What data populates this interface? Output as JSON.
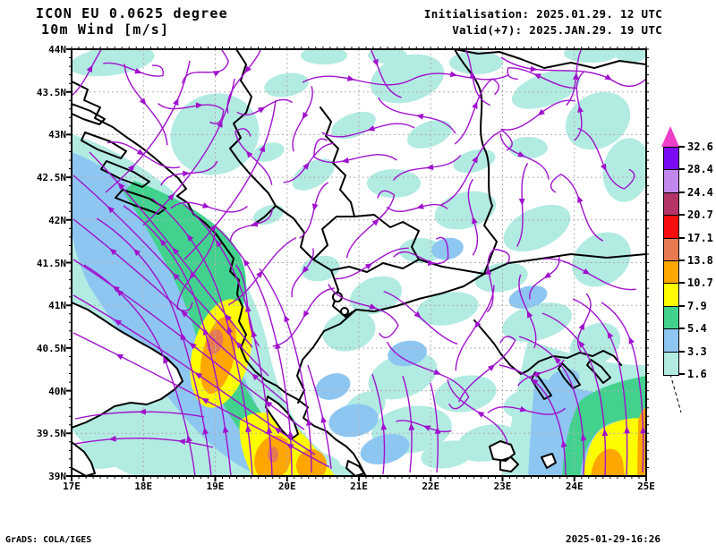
{
  "header": {
    "model": "ICON EU 0.0625 degree",
    "variable": "10m Wind [m/s]",
    "init": "Initialisation: 2025.01.29. 12 UTC",
    "valid": "Valid(+7): 2025.JAN.29. 19 UTC"
  },
  "footer": {
    "left": "GrADS: COLA/IGES",
    "right": "2025-01-29-16:26"
  },
  "axes": {
    "lat_labels": [
      "44N",
      "43.5N",
      "43N",
      "42.5N",
      "42N",
      "41.5N",
      "41N",
      "40.5N",
      "40N",
      "39.5N",
      "39N"
    ],
    "lon_labels": [
      "17E",
      "18E",
      "19E",
      "20E",
      "21E",
      "22E",
      "23E",
      "24E",
      "25E"
    ]
  },
  "colorbar": {
    "labels_bottom_to_top": [
      "1.6",
      "3.3",
      "5.4",
      "7.9",
      "10.7",
      "13.8",
      "17.1",
      "20.7",
      "24.4",
      "28.4",
      "32.6"
    ]
  },
  "colors": {
    "streamline": "#a011cd",
    "border": "#000000",
    "grid": "#b0b0b0",
    "frame": "#000000",
    "land": "#ffffff",
    "overflow_arrow": "#ee3fc9"
  },
  "chart_data": {
    "type": "heatmap",
    "title": "10m Wind [m/s]",
    "model": "ICON EU 0.0625 degree",
    "init_time": "2025.01.29. 12 UTC",
    "valid_time": "2025.JAN.29. 19 UTC",
    "forecast_offset_hours": 7,
    "units": "m/s",
    "lon_range_deg_east": [
      17,
      25
    ],
    "lat_range_deg_north": [
      39,
      44
    ],
    "x_ticks": [
      "17E",
      "18E",
      "19E",
      "20E",
      "21E",
      "22E",
      "23E",
      "24E",
      "25E"
    ],
    "y_ticks": [
      "44N",
      "43.5N",
      "43N",
      "42.5N",
      "42N",
      "41.5N",
      "41N",
      "40.5N",
      "40N",
      "39.5N",
      "39N"
    ],
    "color_levels_ms": [
      1.6,
      3.3,
      5.4,
      7.9,
      10.7,
      13.8,
      17.1,
      20.7,
      24.4,
      28.4,
      32.6
    ],
    "palette_bottom_to_top": [
      "#b2ebe2",
      "#8ec6f2",
      "#42d28e",
      "#fdfd00",
      "#ffa600",
      "#e87a52",
      "#f60d0d",
      "#b43468",
      "#c388ee",
      "#7b0bf2"
    ],
    "overflow_arrow_color": "#ee3fc9",
    "overlay": "streamlines",
    "grid": "dashed, 1 deg lon x 0.5 deg lat",
    "legend_position": "right",
    "wind_maxima": [
      {
        "area": "Adriatic off Montenegro/Albania coast near 19.1E 40.6N",
        "peak_band_ms": "13.8-17.1"
      },
      {
        "area": "Ionian / Strait of Otranto near Corfu 19.8E 39.2N",
        "peak_band_ms": "13.8-17.1"
      },
      {
        "area": "Aegean, SE map corner 24.2-25E below 39.6N",
        "peak_band_ms": "10.7-13.8"
      }
    ],
    "flow_pattern": "strong southerly jet along Albanian coast turning NW over the Adriatic; weak cyclonic swirls inland over Balkans; northward flow in SE Aegean corner"
  }
}
